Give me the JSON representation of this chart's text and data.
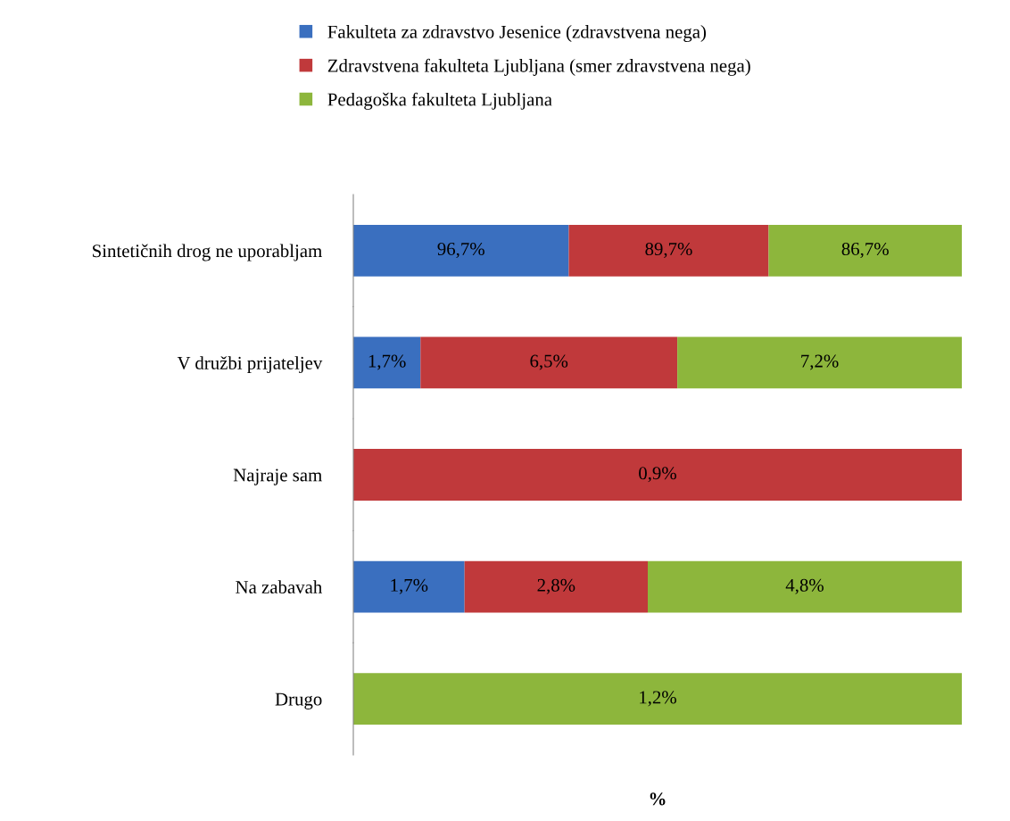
{
  "chart_data": [
    {
      "type": "bar",
      "orientation": "horizontal",
      "stacked": true,
      "categories": [
        "Sintetičnih drog ne uporabljam"
      ],
      "legend": "top",
      "series": [
        {
          "name": "Fakulteta za zdravstvo Jesenice (zdravstvena nega)",
          "color": "#3a6fbf",
          "values": [
            96.7
          ],
          "value_labels": [
            "96,7%"
          ]
        },
        {
          "name": "Zdravstvena fakulteta Ljubljana (smer zdravstvena nega)",
          "color": "#c0393b",
          "values": [
            89.7
          ],
          "value_labels": [
            "89,7%"
          ]
        },
        {
          "name": "Pedagoška fakulteta Ljubljana",
          "color": "#8db63c",
          "values": [
            86.7
          ],
          "value_labels": [
            "86,7%"
          ]
        }
      ]
    },
    {
      "type": "bar",
      "orientation": "horizontal",
      "stacked": true,
      "categories": [
        "V družbi prijateljev"
      ],
      "series": [
        {
          "color": "#3a6fbf",
          "values": [
            1.7
          ],
          "value_labels": [
            "1,7%"
          ]
        },
        {
          "color": "#c0393b",
          "values": [
            6.5
          ],
          "value_labels": [
            "6,5%"
          ]
        },
        {
          "color": "#8db63c",
          "values": [
            7.2
          ],
          "value_labels": [
            "7,2%"
          ]
        }
      ]
    },
    {
      "type": "bar",
      "orientation": "horizontal",
      "stacked": true,
      "categories": [
        "Najraje sam"
      ],
      "series": [
        {
          "color": "#c0393b",
          "values": [
            0.9
          ],
          "value_labels": [
            "0,9%"
          ]
        }
      ]
    },
    {
      "type": "bar",
      "orientation": "horizontal",
      "stacked": true,
      "categories": [
        "Na zabavah"
      ],
      "series": [
        {
          "color": "#3a6fbf",
          "values": [
            1.7
          ],
          "value_labels": [
            "1,7%"
          ]
        },
        {
          "color": "#c0393b",
          "values": [
            2.8
          ],
          "value_labels": [
            "2,8%"
          ]
        },
        {
          "color": "#8db63c",
          "values": [
            4.8
          ],
          "value_labels": [
            "4,8%"
          ]
        }
      ]
    },
    {
      "type": "bar",
      "orientation": "horizontal",
      "stacked": true,
      "categories": [
        "Drugo"
      ],
      "xlabel": "%",
      "series": [
        {
          "color": "#8db63c",
          "values": [
            1.2
          ],
          "value_labels": [
            "1,2%"
          ]
        }
      ]
    }
  ]
}
